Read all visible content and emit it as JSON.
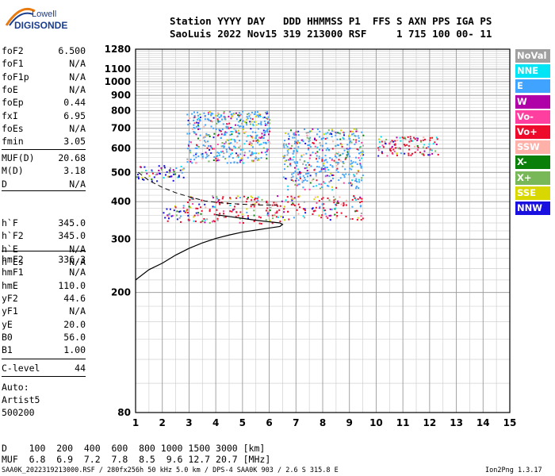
{
  "logo": {
    "line1": "Lowell",
    "line2": "DIGISONDE"
  },
  "header": {
    "line1": "Station YYYY DAY   DDD HHMMSS P1  FFS S AXN PPS IGA PS",
    "line2": "SaoLuis 2022 Nov15 319 213000 RSF     1 715 100 00- 11"
  },
  "params_group1": [
    {
      "label": "foF2",
      "value": "6.500"
    },
    {
      "label": "foF1",
      "value": "N/A"
    },
    {
      "label": "foF1p",
      "value": "N/A"
    },
    {
      "label": "foE",
      "value": "N/A"
    },
    {
      "label": "foEp",
      "value": "0.44"
    },
    {
      "label": "fxI",
      "value": "6.95"
    },
    {
      "label": "foEs",
      "value": "N/A"
    },
    {
      "label": "fmin",
      "value": "3.05"
    }
  ],
  "params_group2": [
    {
      "label": "MUF(D)",
      "value": "20.68"
    },
    {
      "label": "M(D)",
      "value": "3.18"
    },
    {
      "label": "D",
      "value": "N/A"
    }
  ],
  "params_group3": [
    {
      "label": "h`F",
      "value": "345.0"
    },
    {
      "label": "h`F2",
      "value": "345.0"
    },
    {
      "label": "h`E",
      "value": "N/A"
    },
    {
      "label": "h`Es",
      "value": "N/A"
    }
  ],
  "params_group4": [
    {
      "label": "hmF2",
      "value": "336.3"
    },
    {
      "label": "hmF1",
      "value": "N/A"
    },
    {
      "label": "hmE",
      "value": "110.0"
    },
    {
      "label": "yF2",
      "value": "44.6"
    },
    {
      "label": "yF1",
      "value": "N/A"
    },
    {
      "label": "yE",
      "value": "20.0"
    },
    {
      "label": "B0",
      "value": "56.0"
    },
    {
      "label": "B1",
      "value": "1.00"
    }
  ],
  "params_group5": [
    {
      "label": "C-level",
      "value": "44"
    }
  ],
  "auto": {
    "line1": "Auto:",
    "line2": "Artist5",
    "line3": "500200"
  },
  "legend": [
    {
      "label": "NoVal",
      "color": "#a0a0a0"
    },
    {
      "label": "NNE",
      "color": "#00e5f5"
    },
    {
      "label": "E",
      "color": "#3fa3ff"
    },
    {
      "label": "W",
      "color": "#b000a8"
    },
    {
      "label": "Vo-",
      "color": "#ff3fa0"
    },
    {
      "label": "Vo+",
      "color": "#ee0a2a"
    },
    {
      "label": "SSW",
      "color": "#ffb0a8"
    },
    {
      "label": "X-",
      "color": "#0a800a"
    },
    {
      "label": "X+",
      "color": "#78b858"
    },
    {
      "label": "SSE",
      "color": "#d8d800"
    },
    {
      "label": "NNW",
      "color": "#1a10e0"
    }
  ],
  "bottom": {
    "d_line": "D    100  200  400  600  800 1000 1500 3000 [km]",
    "muf_line": "MUF  6.8  6.9  7.2  7.8  8.5  9.6 12.7 20.7 [MHz]"
  },
  "footer": {
    "left": "SAA0K_2022319213000.RSF / 280fx256h 50 kHz 5.0 km / DPS-4 SAA0K 903 / 2.6 S 315.8 E",
    "right": "Ion2Png 1.3.17"
  },
  "chart_data": {
    "type": "scatter",
    "title": "",
    "xlabel": "",
    "ylabel": "",
    "xlim": [
      1,
      15
    ],
    "ylim": [
      80,
      1280
    ],
    "yscale": "log",
    "xticks": [
      1,
      2,
      3,
      4,
      5,
      6,
      7,
      8,
      9,
      10,
      11,
      12,
      13,
      14,
      15
    ],
    "yticks": [
      80,
      200,
      300,
      400,
      500,
      600,
      700,
      800,
      900,
      1000,
      1100,
      1280
    ],
    "grid": true,
    "legend_position": "right",
    "echo_clusters": [
      {
        "freq_range": [
          1.9,
          3.0
        ],
        "height_range": [
          340,
          390
        ],
        "dominant": "NNW"
      },
      {
        "freq_range": [
          1.0,
          2.8
        ],
        "height_range": [
          470,
          530
        ],
        "dominant": "NNW"
      },
      {
        "freq_range": [
          2.9,
          6.7
        ],
        "height_range": [
          340,
          420
        ],
        "dominant": "Vo+"
      },
      {
        "freq_range": [
          2.9,
          6.0
        ],
        "height_range": [
          540,
          800
        ],
        "dominant": "E"
      },
      {
        "freq_range": [
          6.5,
          9.5
        ],
        "height_range": [
          350,
          420
        ],
        "dominant": "Vo+"
      },
      {
        "freq_range": [
          6.5,
          9.5
        ],
        "height_range": [
          440,
          700
        ],
        "dominant": "E"
      },
      {
        "freq_range": [
          10.0,
          12.3
        ],
        "height_range": [
          570,
          660
        ],
        "dominant": "Vo+"
      }
    ],
    "trace_points": [
      [
        1.0,
        220
      ],
      [
        1.5,
        238
      ],
      [
        2.0,
        250
      ],
      [
        2.5,
        266
      ],
      [
        3.0,
        280
      ],
      [
        3.5,
        292
      ],
      [
        4.0,
        302
      ],
      [
        4.5,
        310
      ],
      [
        5.0,
        317
      ],
      [
        5.5,
        322
      ],
      [
        6.0,
        327
      ],
      [
        6.4,
        331
      ],
      [
        6.5,
        336
      ],
      [
        6.4,
        340
      ],
      [
        6.0,
        343
      ],
      [
        5.5,
        347
      ],
      [
        5.0,
        352
      ],
      [
        4.5,
        357
      ],
      [
        4.0,
        362
      ]
    ],
    "dashed_trace": [
      [
        1.1,
        500
      ],
      [
        1.5,
        470
      ],
      [
        2.0,
        446
      ],
      [
        2.5,
        428
      ],
      [
        3.0,
        415
      ],
      [
        3.6,
        402
      ],
      [
        4.2,
        396
      ],
      [
        5.0,
        392
      ],
      [
        5.5,
        390
      ],
      [
        6.3,
        390
      ]
    ]
  }
}
